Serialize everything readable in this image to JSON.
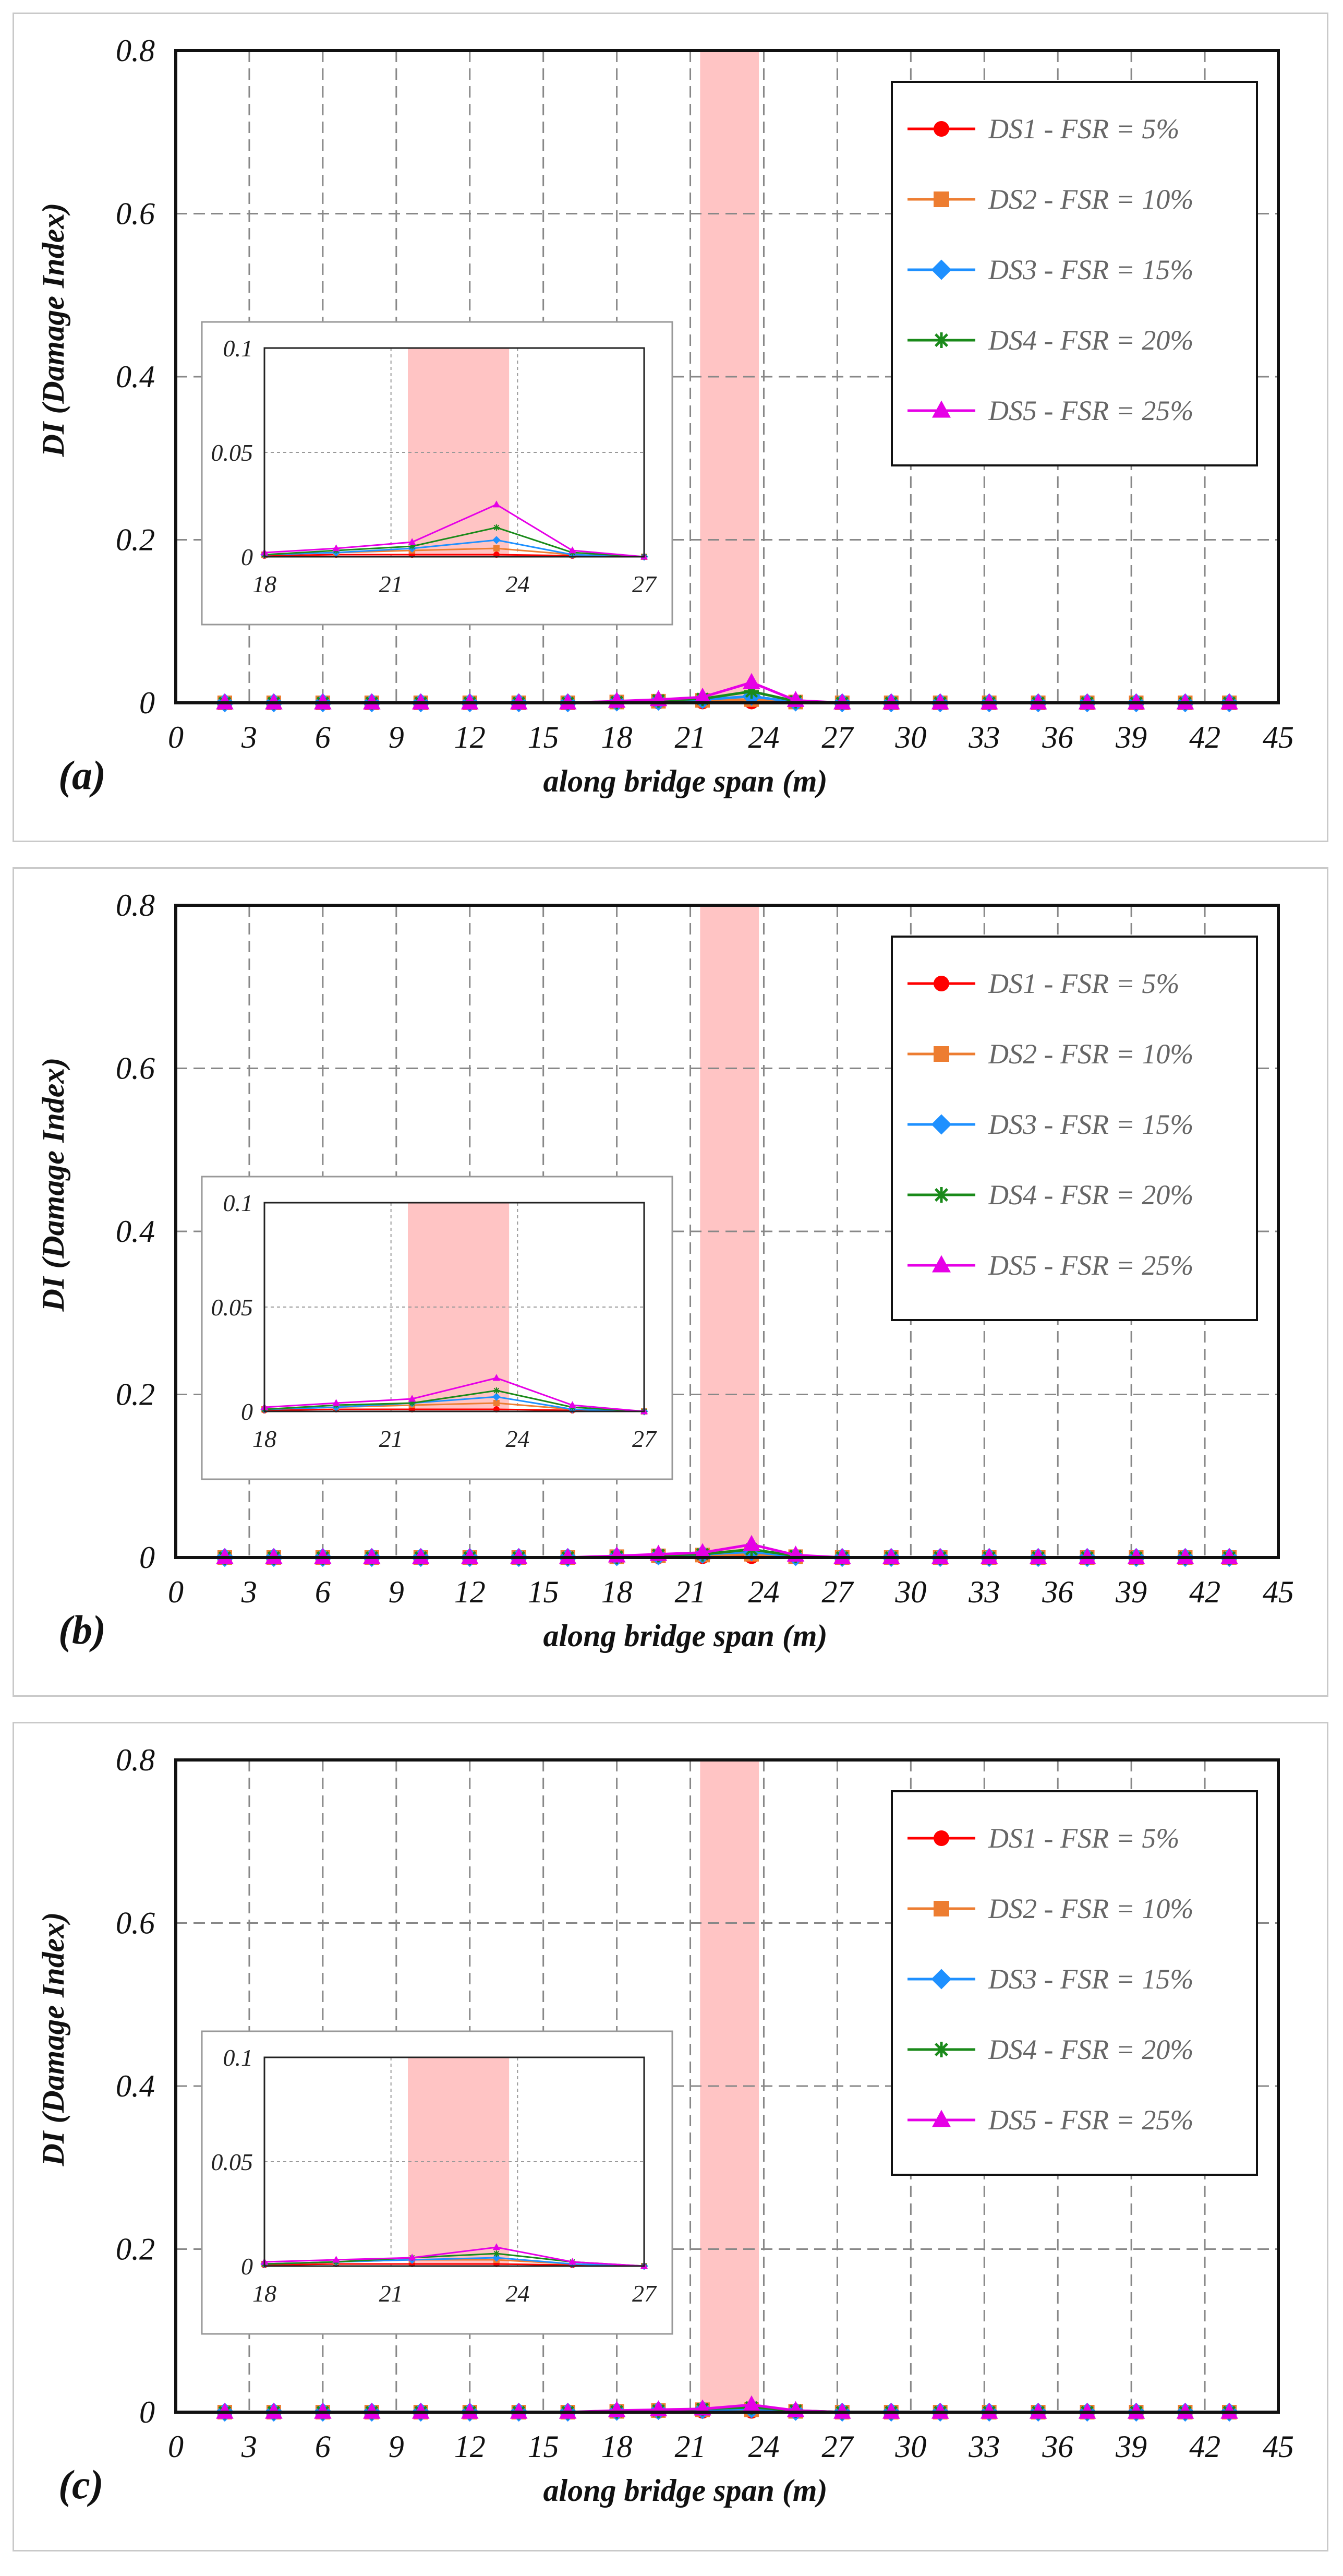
{
  "chart_data": [
    {
      "type": "line",
      "panel_label": "(a)",
      "xlabel": "along bridge span (m)",
      "ylabel": "DI (Damage Index)",
      "xlim": [
        0,
        45
      ],
      "ylim": [
        0,
        0.8
      ],
      "x_ticks": [
        0,
        3,
        6,
        9,
        12,
        15,
        18,
        21,
        24,
        27,
        30,
        33,
        36,
        39,
        42,
        45
      ],
      "y_ticks": [
        0,
        0.2,
        0.4,
        0.6,
        0.8
      ],
      "y_tick_labels": [
        "0",
        "0.2",
        "0.4",
        "0.6",
        "0.8"
      ],
      "damaged_region": [
        21.4,
        23.8
      ],
      "legend_position": "top-right",
      "x": [
        2.0,
        4.0,
        6.0,
        8.0,
        10.0,
        12.0,
        14.0,
        16.0,
        18.0,
        19.7,
        21.5,
        23.5,
        25.3,
        27.2,
        29.2,
        31.2,
        33.2,
        35.2,
        37.2,
        39.2,
        41.2,
        43.0
      ],
      "series": [
        {
          "name": "DS1 - FSR = 5%",
          "color": "#ff0000",
          "marker": "circle",
          "values": [
            0,
            0,
            0,
            0,
            0,
            0,
            0,
            0,
            0.0005,
            0.001,
            0.001,
            0.001,
            0.0005,
            0,
            0,
            0,
            0,
            0,
            0,
            0,
            0,
            0
          ]
        },
        {
          "name": "DS2 - FSR = 10%",
          "color": "#ed7d31",
          "marker": "square",
          "values": [
            0,
            0,
            0,
            0,
            0,
            0,
            0,
            0,
            0.001,
            0.002,
            0.003,
            0.004,
            0.001,
            0,
            0,
            0,
            0,
            0,
            0,
            0,
            0,
            0
          ]
        },
        {
          "name": "DS3 - FSR = 15%",
          "color": "#1e90ff",
          "marker": "diamond",
          "values": [
            0,
            0,
            0,
            0,
            0,
            0,
            0,
            0,
            0.001,
            0.002,
            0.004,
            0.008,
            0.001,
            0,
            0,
            0,
            0,
            0,
            0,
            0,
            0,
            0
          ]
        },
        {
          "name": "DS4 - FSR = 20%",
          "color": "#1a8a1a",
          "marker": "star",
          "values": [
            0,
            0,
            0,
            0,
            0,
            0,
            0,
            0,
            0.001,
            0.003,
            0.005,
            0.014,
            0.002,
            0,
            0,
            0,
            0,
            0,
            0,
            0,
            0,
            0
          ]
        },
        {
          "name": "DS5 - FSR = 25%",
          "color": "#e600e6",
          "marker": "triangle",
          "values": [
            0,
            0,
            0,
            0,
            0,
            0,
            0,
            0,
            0.002,
            0.004,
            0.007,
            0.025,
            0.003,
            0,
            0,
            0,
            0,
            0,
            0,
            0,
            0,
            0
          ]
        }
      ],
      "inset": {
        "xlim": [
          18,
          27
        ],
        "ylim": [
          0,
          0.1
        ],
        "x_ticks": [
          18,
          21,
          24,
          27
        ],
        "y_ticks": [
          0,
          0.05,
          0.1
        ],
        "y_tick_labels": [
          "0",
          "0.05",
          "0.1"
        ]
      }
    },
    {
      "type": "line",
      "panel_label": "(b)",
      "xlabel": "along bridge span (m)",
      "ylabel": "DI (Damage Index)",
      "xlim": [
        0,
        45
      ],
      "ylim": [
        0,
        0.8
      ],
      "x_ticks": [
        0,
        3,
        6,
        9,
        12,
        15,
        18,
        21,
        24,
        27,
        30,
        33,
        36,
        39,
        42,
        45
      ],
      "y_ticks": [
        0,
        0.2,
        0.4,
        0.6,
        0.8
      ],
      "y_tick_labels": [
        "0",
        "0.2",
        "0.4",
        "0.6",
        "0.8"
      ],
      "damaged_region": [
        21.4,
        23.8
      ],
      "legend_position": "top-right",
      "x": [
        2.0,
        4.0,
        6.0,
        8.0,
        10.0,
        12.0,
        14.0,
        16.0,
        18.0,
        19.7,
        21.5,
        23.5,
        25.3,
        27.2,
        29.2,
        31.2,
        33.2,
        35.2,
        37.2,
        39.2,
        41.2,
        43.0
      ],
      "series": [
        {
          "name": "DS1 - FSR = 5%",
          "color": "#ff0000",
          "marker": "circle",
          "values": [
            0,
            0,
            0,
            0,
            0,
            0,
            0,
            0,
            0.0005,
            0.001,
            0.001,
            0.001,
            0.0005,
            0,
            0,
            0,
            0,
            0,
            0,
            0,
            0,
            0
          ]
        },
        {
          "name": "DS2 - FSR = 10%",
          "color": "#ed7d31",
          "marker": "square",
          "values": [
            0,
            0,
            0,
            0,
            0,
            0,
            0,
            0,
            0.001,
            0.002,
            0.003,
            0.004,
            0.001,
            0,
            0,
            0,
            0,
            0,
            0,
            0,
            0,
            0
          ]
        },
        {
          "name": "DS3 - FSR = 15%",
          "color": "#1e90ff",
          "marker": "diamond",
          "values": [
            0,
            0,
            0,
            0,
            0,
            0,
            0,
            0,
            0.001,
            0.002,
            0.004,
            0.007,
            0.001,
            0,
            0,
            0,
            0,
            0,
            0,
            0,
            0,
            0
          ]
        },
        {
          "name": "DS4 - FSR = 20%",
          "color": "#1a8a1a",
          "marker": "star",
          "values": [
            0,
            0,
            0,
            0,
            0,
            0,
            0,
            0,
            0.001,
            0.003,
            0.004,
            0.01,
            0.002,
            0,
            0,
            0,
            0,
            0,
            0,
            0,
            0,
            0
          ]
        },
        {
          "name": "DS5 - FSR = 25%",
          "color": "#e600e6",
          "marker": "triangle",
          "values": [
            0,
            0,
            0,
            0,
            0,
            0,
            0,
            0,
            0.002,
            0.004,
            0.006,
            0.016,
            0.003,
            0,
            0,
            0,
            0,
            0,
            0,
            0,
            0,
            0
          ]
        }
      ],
      "inset": {
        "xlim": [
          18,
          27
        ],
        "ylim": [
          0,
          0.1
        ],
        "x_ticks": [
          18,
          21,
          24,
          27
        ],
        "y_ticks": [
          0,
          0.05,
          0.1
        ],
        "y_tick_labels": [
          "0",
          "0.05",
          "0.1"
        ]
      }
    },
    {
      "type": "line",
      "panel_label": "(c)",
      "xlabel": "along bridge span (m)",
      "ylabel": "DI (Damage Index)",
      "xlim": [
        0,
        45
      ],
      "ylim": [
        0,
        0.8
      ],
      "x_ticks": [
        0,
        3,
        6,
        9,
        12,
        15,
        18,
        21,
        24,
        27,
        30,
        33,
        36,
        39,
        42,
        45
      ],
      "y_ticks": [
        0,
        0.2,
        0.4,
        0.6,
        0.8
      ],
      "y_tick_labels": [
        "0",
        "0.2",
        "0.4",
        "0.6",
        "0.8"
      ],
      "damaged_region": [
        21.4,
        23.8
      ],
      "legend_position": "top-right",
      "x": [
        2.0,
        4.0,
        6.0,
        8.0,
        10.0,
        12.0,
        14.0,
        16.0,
        18.0,
        19.7,
        21.5,
        23.5,
        25.3,
        27.2,
        29.2,
        31.2,
        33.2,
        35.2,
        37.2,
        39.2,
        41.2,
        43.0
      ],
      "series": [
        {
          "name": "DS1 - FSR = 5%",
          "color": "#ff0000",
          "marker": "circle",
          "values": [
            0,
            0,
            0,
            0,
            0,
            0,
            0,
            0,
            0.0005,
            0.001,
            0.001,
            0.001,
            0.0005,
            0,
            0,
            0,
            0,
            0,
            0,
            0,
            0,
            0
          ]
        },
        {
          "name": "DS2 - FSR = 10%",
          "color": "#ed7d31",
          "marker": "square",
          "values": [
            0,
            0,
            0,
            0,
            0,
            0,
            0,
            0,
            0.001,
            0.002,
            0.003,
            0.003,
            0.001,
            0,
            0,
            0,
            0,
            0,
            0,
            0,
            0,
            0
          ]
        },
        {
          "name": "DS3 - FSR = 15%",
          "color": "#1e90ff",
          "marker": "diamond",
          "values": [
            0,
            0,
            0,
            0,
            0,
            0,
            0,
            0,
            0.001,
            0.002,
            0.003,
            0.004,
            0.001,
            0,
            0,
            0,
            0,
            0,
            0,
            0,
            0,
            0
          ]
        },
        {
          "name": "DS4 - FSR = 20%",
          "color": "#1a8a1a",
          "marker": "star",
          "values": [
            0,
            0,
            0,
            0,
            0,
            0,
            0,
            0,
            0.001,
            0.002,
            0.004,
            0.006,
            0.002,
            0,
            0,
            0,
            0,
            0,
            0,
            0,
            0,
            0
          ]
        },
        {
          "name": "DS5 - FSR = 25%",
          "color": "#e600e6",
          "marker": "triangle",
          "values": [
            0,
            0,
            0,
            0,
            0,
            0,
            0,
            0,
            0.002,
            0.003,
            0.004,
            0.009,
            0.002,
            0,
            0,
            0,
            0,
            0,
            0,
            0,
            0,
            0
          ]
        }
      ],
      "inset": {
        "xlim": [
          18,
          27
        ],
        "ylim": [
          0,
          0.1
        ],
        "x_ticks": [
          18,
          21,
          24,
          27
        ],
        "y_ticks": [
          0,
          0.05,
          0.1
        ],
        "y_tick_labels": [
          "0",
          "0.05",
          "0.1"
        ]
      }
    }
  ]
}
